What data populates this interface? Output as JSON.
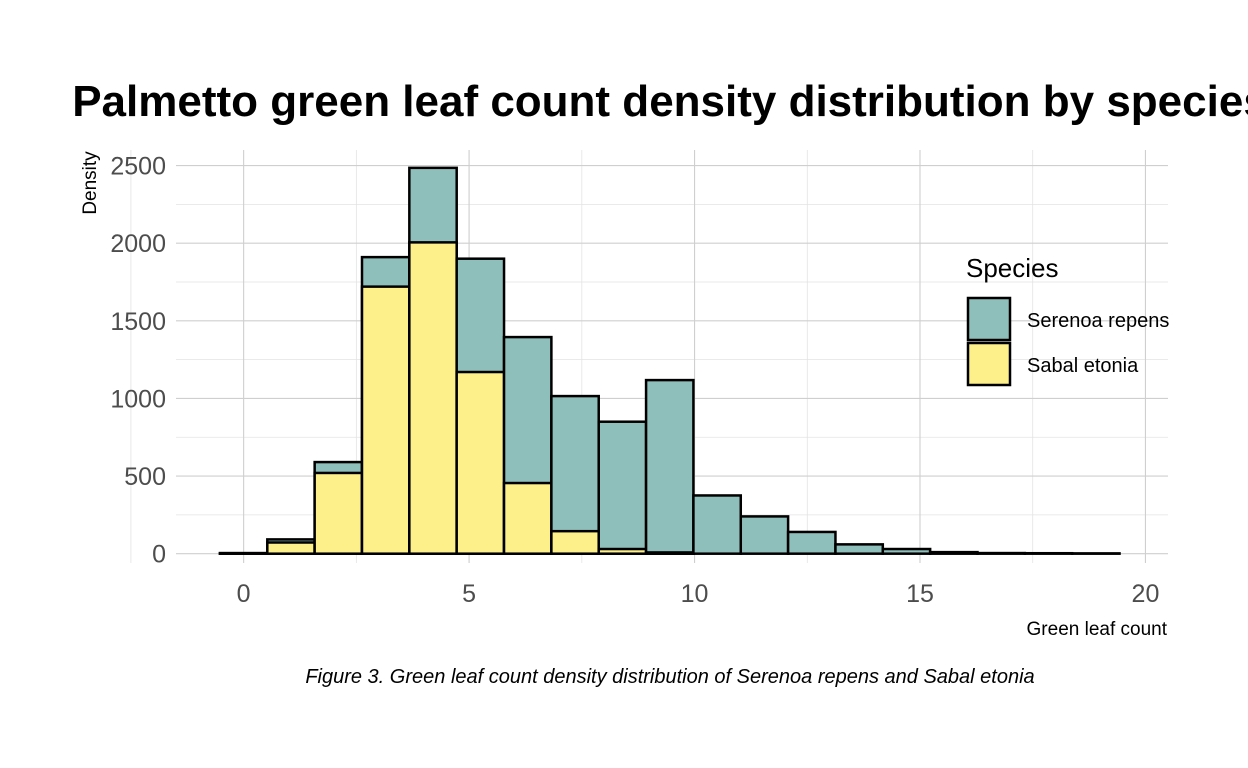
{
  "chart_data": {
    "type": "bar",
    "title": "Palmetto green leaf count density distribution by species",
    "xlabel": "Green leaf count",
    "ylabel": "Density",
    "caption": "Figure 3. Green leaf count density distribution of Serenoa repens and Sabal etonia",
    "position": "stack",
    "binwidth": 1.05,
    "bin_centers": [
      0,
      1.05,
      2.1,
      3.15,
      4.2,
      5.25,
      6.3,
      7.35,
      8.4,
      9.45,
      10.5,
      11.55,
      12.6,
      13.65,
      14.7,
      15.75,
      16.8,
      17.85,
      18.9
    ],
    "xlim": [
      -1.5,
      20.5
    ],
    "ylim": [
      -60,
      2600
    ],
    "x_ticks": [
      0,
      5,
      10,
      15,
      20
    ],
    "y_ticks": [
      0,
      500,
      1000,
      1500,
      2000,
      2500
    ],
    "grid": true,
    "legend": {
      "title": "Species",
      "position": "right"
    },
    "series": [
      {
        "name": "Sabal etonia",
        "color": "#fdf08b",
        "values": [
          2,
          72,
          520,
          1720,
          2005,
          1170,
          455,
          145,
          30,
          8,
          0,
          0,
          0,
          0,
          0,
          0,
          0,
          0,
          0
        ]
      },
      {
        "name": "Serenoa repens",
        "color": "#8fbfbb",
        "values": [
          2,
          20,
          70,
          190,
          480,
          730,
          940,
          870,
          820,
          1110,
          375,
          240,
          140,
          60,
          30,
          10,
          4,
          3,
          2
        ]
      }
    ],
    "legend_order": [
      "Serenoa repens",
      "Sabal etonia"
    ]
  }
}
